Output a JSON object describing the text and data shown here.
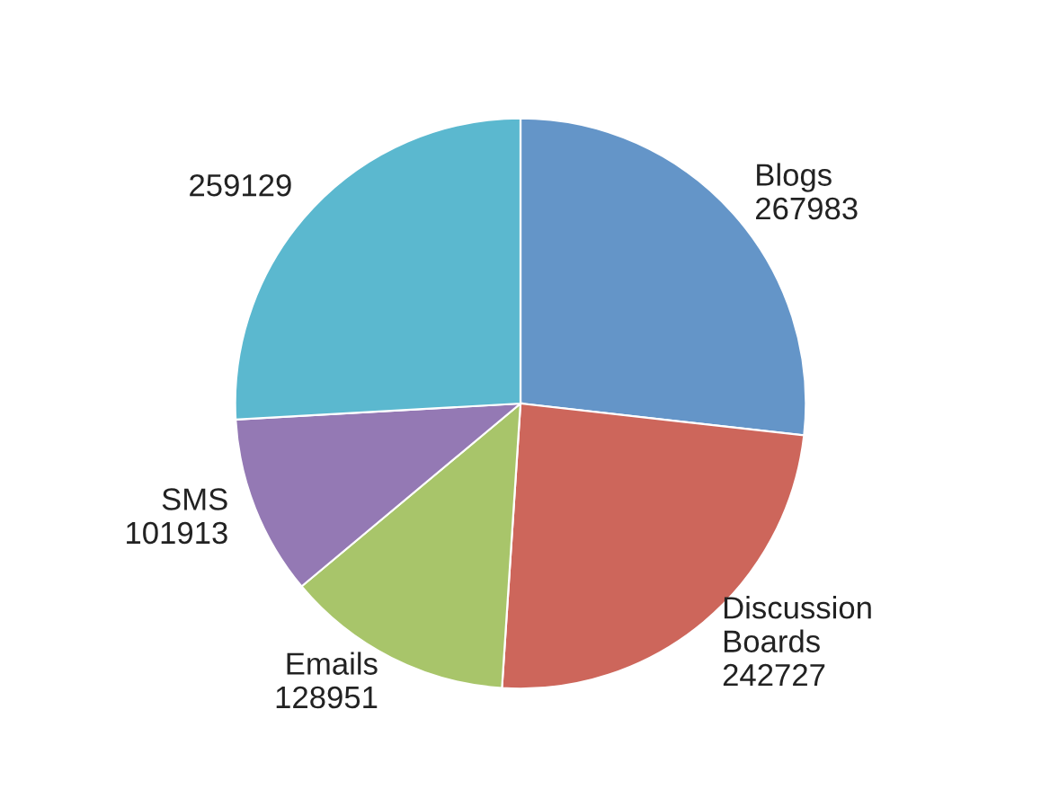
{
  "chart_data": {
    "type": "pie",
    "categories": [
      "Blogs",
      "Discussion\nBoards",
      "Emails",
      "SMS",
      null
    ],
    "values": [
      267983,
      242727,
      128951,
      101913,
      259129
    ],
    "colors": [
      "#6495c8",
      "#cd665b",
      "#a8c56a",
      "#9479b4",
      "#5bb8cf"
    ],
    "data_labels": true
  }
}
